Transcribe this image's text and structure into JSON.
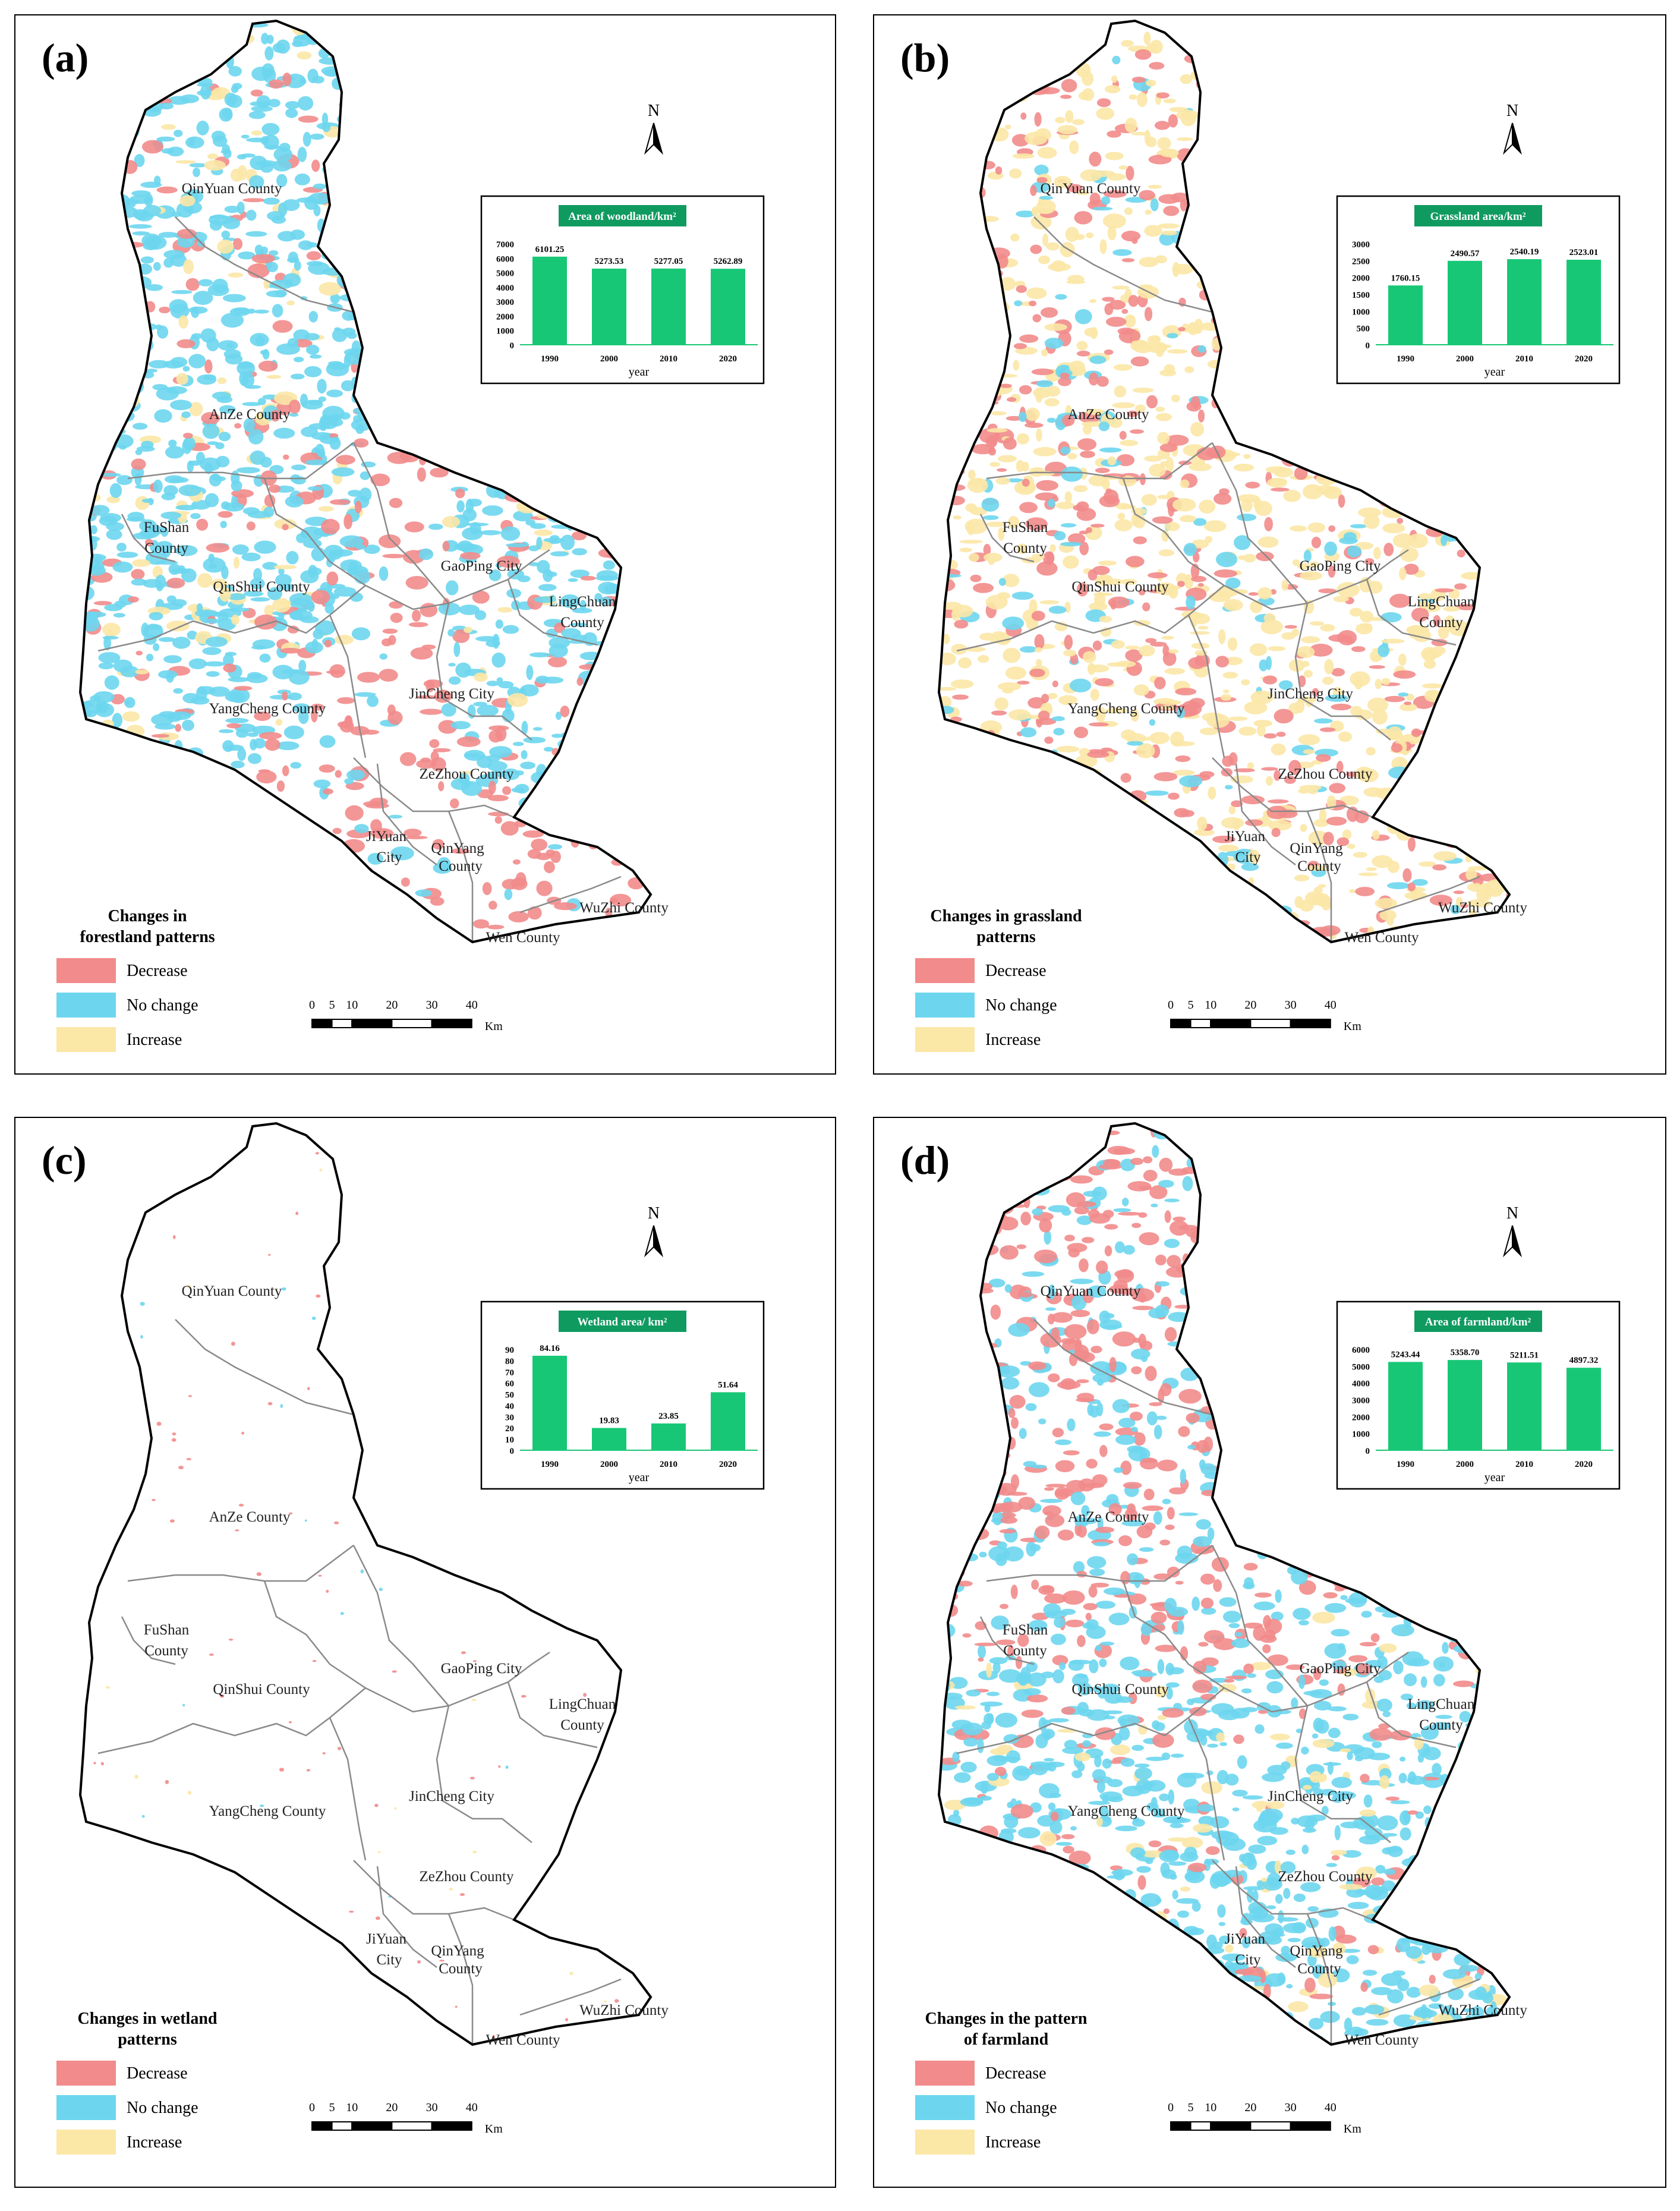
{
  "colors": {
    "decrease": "#f28b8b",
    "no_change": "#6dd6ee",
    "increase": "#fbe7a6",
    "bar": "#18c776",
    "chart_title_bg": "#0f9a60",
    "boundary": "#000000",
    "county_line": "#8a8a8a"
  },
  "counties": [
    "QinYuan County",
    "AnZe County",
    "FuShan",
    "County",
    "QinShui County",
    "GaoPing City",
    "LingChuan",
    "County",
    "YangCheng County",
    "JinCheng City",
    "ZeZhou County",
    "JiYuan",
    "City",
    "QinYang",
    "County",
    "WuZhi County",
    "Wen County"
  ],
  "north_label": "N",
  "scale": {
    "ticks": [
      "0",
      "5",
      "10",
      "20",
      "30",
      "40"
    ],
    "unit": "Km"
  },
  "legend_items": [
    "Decrease",
    "No change",
    "Increase"
  ],
  "panels": [
    {
      "label": "(a)",
      "legend_title": [
        "Changes in",
        "forestland patterns"
      ],
      "map_style": "forest"
    },
    {
      "label": "(b)",
      "legend_title": [
        "Changes in grassland",
        "patterns"
      ],
      "map_style": "grass"
    },
    {
      "label": "(c)",
      "legend_title": [
        "Changes in wetland",
        "patterns"
      ],
      "map_style": "wetland"
    },
    {
      "label": "(d)",
      "legend_title": [
        "Changes in the pattern",
        "of farmland"
      ],
      "map_style": "farm"
    }
  ],
  "chart_data": [
    {
      "type": "bar",
      "title": "Area of woodland/km²",
      "categories": [
        "1990",
        "2000",
        "2010",
        "2020"
      ],
      "values": [
        6101.25,
        5273.53,
        5277.05,
        5262.89
      ],
      "value_labels": [
        "6101.25",
        "5273.53",
        "5277.05",
        "5262.89"
      ],
      "yticks": [
        "0",
        "1000",
        "2000",
        "3000",
        "4000",
        "5000",
        "6000",
        "7000"
      ],
      "ylim": [
        0,
        7000
      ],
      "xlabel": "year"
    },
    {
      "type": "bar",
      "title": "Grassland area/km²",
      "categories": [
        "1990",
        "2000",
        "2010",
        "2020"
      ],
      "values": [
        1760.15,
        2490.57,
        2540.19,
        2523.01
      ],
      "value_labels": [
        "1760.15",
        "2490.57",
        "2540.19",
        "2523.01"
      ],
      "yticks": [
        "0",
        "500",
        "1000",
        "1500",
        "2000",
        "2500",
        "3000"
      ],
      "ylim": [
        0,
        3000
      ],
      "xlabel": "year"
    },
    {
      "type": "bar",
      "title": "Wetland area/ km²",
      "categories": [
        "1990",
        "2000",
        "2010",
        "2020"
      ],
      "values": [
        84.16,
        19.83,
        23.85,
        51.64
      ],
      "value_labels": [
        "84.16",
        "19.83",
        "23.85",
        "51.64"
      ],
      "yticks": [
        "0",
        "10",
        "20",
        "30",
        "40",
        "50",
        "60",
        "70",
        "80",
        "90"
      ],
      "ylim": [
        0,
        90
      ],
      "xlabel": "year"
    },
    {
      "type": "bar",
      "title": "Area of farmland/km²",
      "categories": [
        "1990",
        "2000",
        "2010",
        "2020"
      ],
      "values": [
        5243.44,
        5358.7,
        5211.51,
        4897.32
      ],
      "value_labels": [
        "5243.44",
        "5358.70",
        "5211.51",
        "4897.32"
      ],
      "yticks": [
        "0",
        "1000",
        "2000",
        "3000",
        "4000",
        "5000",
        "6000"
      ],
      "ylim": [
        0,
        6000
      ],
      "xlabel": "year"
    }
  ]
}
